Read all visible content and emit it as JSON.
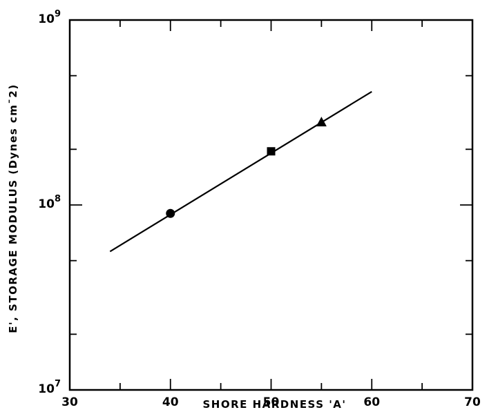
{
  "chart_data": {
    "type": "scatter",
    "title": "",
    "xlabel": "SHORE HARDNESS 'A'",
    "ylabel": "E', STORAGE MODULUS (Dynes cm¯2)",
    "xlim": [
      30,
      70
    ],
    "ylim": [
      10000000,
      1000000000
    ],
    "y_scale": "log",
    "grid": false,
    "x_ticks": [
      30,
      40,
      50,
      60,
      70
    ],
    "x_tick_labels": [
      "30",
      "40",
      "50",
      "60",
      "70"
    ],
    "y_ticks": [
      10000000,
      100000000,
      1000000000
    ],
    "y_tick_labels": [
      {
        "base": "10",
        "exp": "7"
      },
      {
        "base": "10",
        "exp": "8"
      },
      {
        "base": "10",
        "exp": "9"
      }
    ],
    "points": [
      {
        "marker": "circle",
        "x": 40,
        "y": 90000000
      },
      {
        "marker": "square",
        "x": 50,
        "y": 195000000
      },
      {
        "marker": "triangle",
        "x": 55,
        "y": 280000000
      }
    ],
    "fit_line": {
      "x": [
        34,
        60
      ],
      "y": [
        56000000,
        410000000
      ]
    },
    "colors": {
      "ink": "#000000",
      "background": "#ffffff"
    }
  }
}
